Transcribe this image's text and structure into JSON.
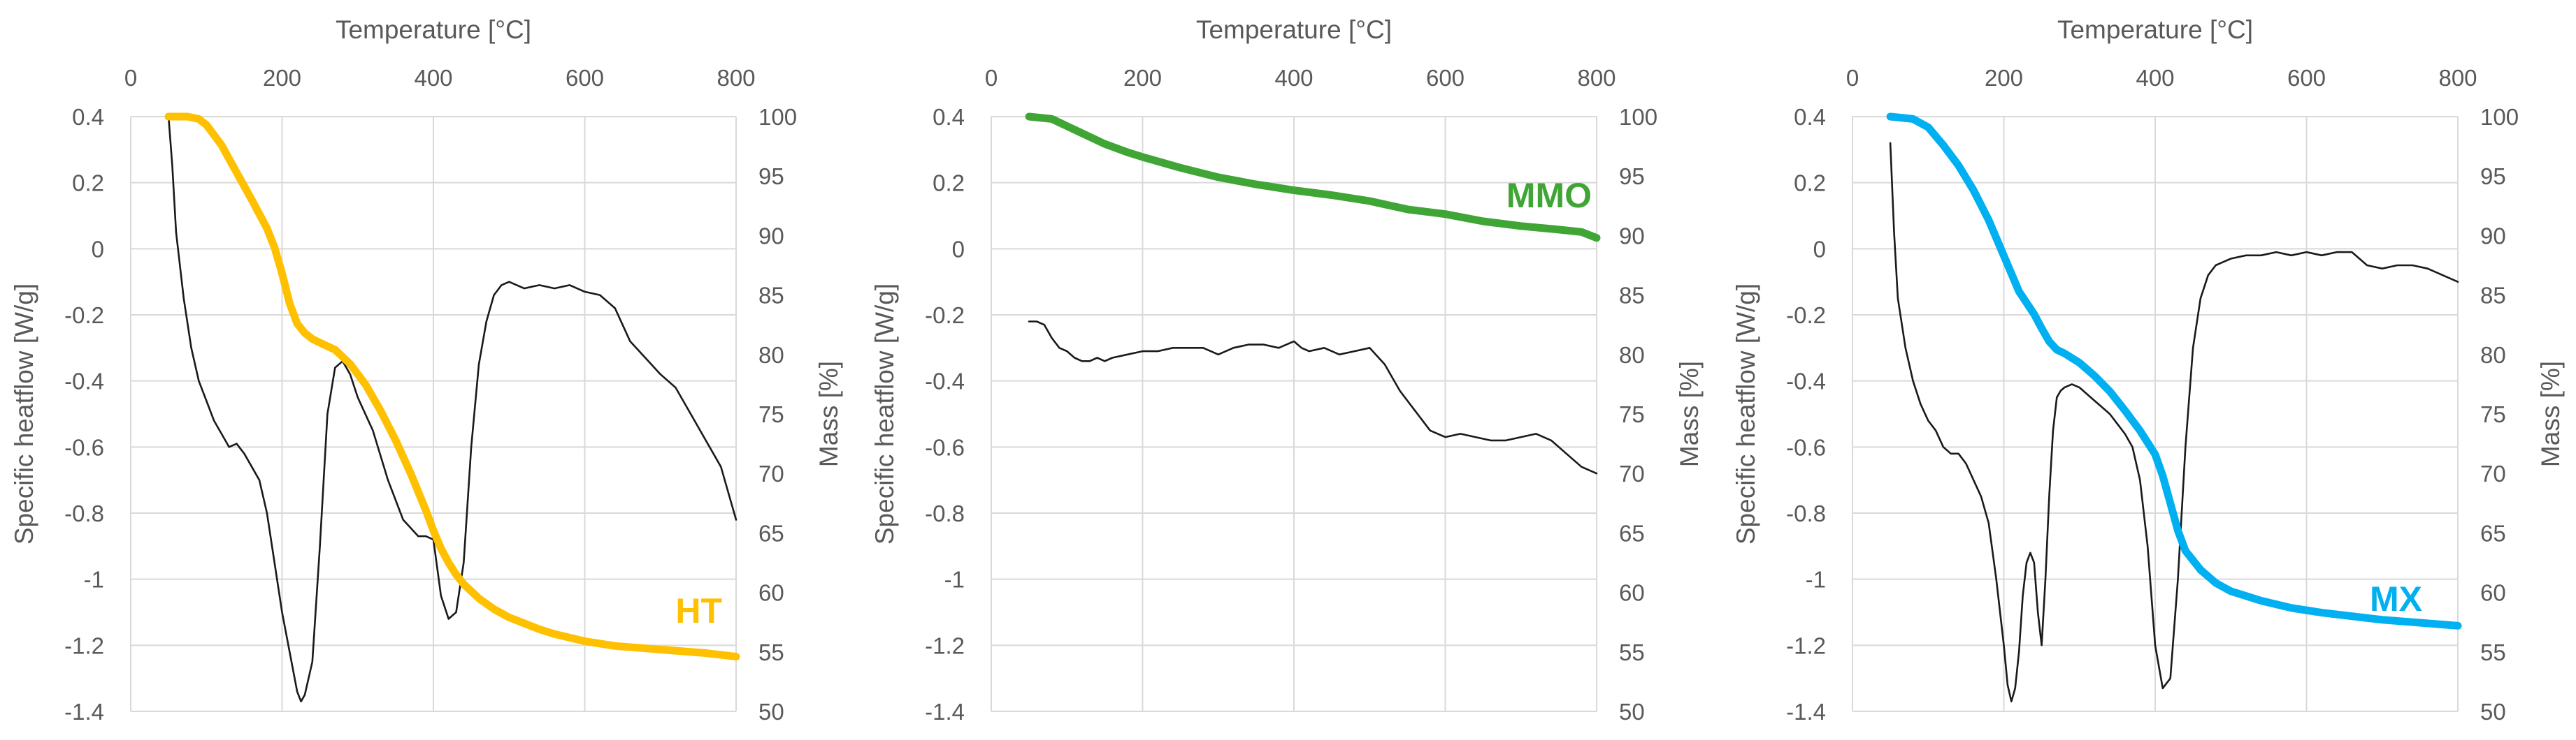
{
  "chart_data": [
    {
      "type": "line",
      "panel": "HT",
      "xlabel": "Temperature [°C]",
      "ylabel": "Specific heatflow [W/g]",
      "y2label": "Mass [%]",
      "xlim": [
        0,
        800
      ],
      "ylim": [
        -1.4,
        0.4
      ],
      "y2lim": [
        50,
        100
      ],
      "x_ticks": [
        "0",
        "200",
        "400",
        "600",
        "800"
      ],
      "y_ticks": [
        "0.4",
        "0.2",
        "0",
        "-0.2",
        "-0.4",
        "-0.6",
        "-0.8",
        "-1",
        "-1.2",
        "-1.4"
      ],
      "y2_ticks": [
        "100",
        "95",
        "90",
        "85",
        "80",
        "75",
        "70",
        "65",
        "60",
        "55",
        "50"
      ],
      "series_label": "HT",
      "series": [
        {
          "name": "Specific heatflow",
          "axis": "left",
          "color": "#1a1a1a",
          "x": [
            50,
            55,
            60,
            70,
            80,
            90,
            100,
            110,
            120,
            130,
            140,
            150,
            160,
            170,
            180,
            190,
            200,
            210,
            220,
            225,
            230,
            240,
            250,
            260,
            270,
            280,
            290,
            300,
            320,
            340,
            360,
            380,
            390,
            400,
            410,
            420,
            430,
            440,
            450,
            460,
            470,
            480,
            490,
            500,
            520,
            540,
            560,
            580,
            600,
            620,
            640,
            660,
            680,
            700,
            720,
            740,
            760,
            780,
            800
          ],
          "values": [
            0.4,
            0.25,
            0.05,
            -0.15,
            -0.3,
            -0.4,
            -0.46,
            -0.52,
            -0.56,
            -0.6,
            -0.59,
            -0.62,
            -0.66,
            -0.7,
            -0.8,
            -0.95,
            -1.1,
            -1.22,
            -1.34,
            -1.37,
            -1.35,
            -1.25,
            -0.9,
            -0.5,
            -0.36,
            -0.34,
            -0.38,
            -0.45,
            -0.55,
            -0.7,
            -0.82,
            -0.87,
            -0.87,
            -0.88,
            -1.05,
            -1.12,
            -1.1,
            -0.95,
            -0.6,
            -0.35,
            -0.22,
            -0.14,
            -0.11,
            -0.1,
            -0.12,
            -0.11,
            -0.12,
            -0.11,
            -0.13,
            -0.14,
            -0.18,
            -0.28,
            -0.33,
            -0.38,
            -0.42,
            -0.5,
            -0.58,
            -0.66,
            -0.82
          ]
        },
        {
          "name": "Mass",
          "axis": "right",
          "color": "#ffc000",
          "x": [
            50,
            75,
            90,
            100,
            120,
            140,
            160,
            180,
            190,
            200,
            210,
            220,
            230,
            240,
            250,
            270,
            290,
            310,
            330,
            350,
            370,
            390,
            400,
            410,
            420,
            430,
            440,
            450,
            460,
            480,
            500,
            520,
            540,
            560,
            600,
            640,
            680,
            720,
            760,
            800
          ],
          "values": [
            100,
            100,
            99.8,
            99.3,
            97.6,
            95.3,
            93,
            90.6,
            89,
            86.8,
            84.3,
            82.6,
            81.8,
            81.3,
            81,
            80.4,
            79.2,
            77.5,
            75.3,
            72.8,
            70,
            66.9,
            65.2,
            63.7,
            62.5,
            61.5,
            60.7,
            60.1,
            59.5,
            58.6,
            57.9,
            57.4,
            56.9,
            56.5,
            55.9,
            55.5,
            55.3,
            55.1,
            54.9,
            54.6
          ]
        }
      ]
    },
    {
      "type": "line",
      "panel": "MMO",
      "xlabel": "Temperature [°C]",
      "ylabel": "Specific heatflow [W/g]",
      "y2label": "Mass [%]",
      "xlim": [
        0,
        800
      ],
      "ylim": [
        -1.4,
        0.4
      ],
      "y2lim": [
        50,
        100
      ],
      "x_ticks": [
        "0",
        "200",
        "400",
        "600",
        "800"
      ],
      "y_ticks": [
        "0.4",
        "0.2",
        "0",
        "-0.2",
        "-0.4",
        "-0.6",
        "-0.8",
        "-1",
        "-1.2",
        "-1.4"
      ],
      "y2_ticks": [
        "100",
        "95",
        "90",
        "85",
        "80",
        "75",
        "70",
        "65",
        "60",
        "55",
        "50"
      ],
      "series_label": "MMO",
      "series": [
        {
          "name": "Specific heatflow",
          "axis": "left",
          "color": "#1a1a1a",
          "x": [
            50,
            60,
            70,
            80,
            90,
            100,
            110,
            120,
            130,
            140,
            150,
            160,
            180,
            200,
            220,
            240,
            260,
            280,
            300,
            320,
            340,
            360,
            380,
            390,
            400,
            410,
            420,
            440,
            460,
            480,
            500,
            520,
            540,
            560,
            580,
            600,
            620,
            640,
            660,
            680,
            700,
            720,
            740,
            760,
            780,
            800
          ],
          "values": [
            -0.22,
            -0.22,
            -0.23,
            -0.27,
            -0.3,
            -0.31,
            -0.33,
            -0.34,
            -0.34,
            -0.33,
            -0.34,
            -0.33,
            -0.32,
            -0.31,
            -0.31,
            -0.3,
            -0.3,
            -0.3,
            -0.32,
            -0.3,
            -0.29,
            -0.29,
            -0.3,
            -0.29,
            -0.28,
            -0.3,
            -0.31,
            -0.3,
            -0.32,
            -0.31,
            -0.3,
            -0.35,
            -0.43,
            -0.49,
            -0.55,
            -0.57,
            -0.56,
            -0.57,
            -0.58,
            -0.58,
            -0.57,
            -0.56,
            -0.58,
            -0.62,
            -0.66,
            -0.68
          ]
        },
        {
          "name": "Mass",
          "axis": "right",
          "color": "#3fa535",
          "x": [
            50,
            80,
            100,
            120,
            150,
            180,
            200,
            250,
            300,
            350,
            400,
            450,
            500,
            550,
            600,
            650,
            700,
            750,
            780,
            800
          ],
          "values": [
            100,
            99.8,
            99.2,
            98.6,
            97.7,
            97,
            96.6,
            95.7,
            94.9,
            94.3,
            93.8,
            93.4,
            92.9,
            92.2,
            91.8,
            91.2,
            90.8,
            90.5,
            90.3,
            89.8
          ]
        }
      ]
    },
    {
      "type": "line",
      "panel": "MX",
      "xlabel": "Temperature [°C]",
      "ylabel": "Specific heatflow [W/g]",
      "y2label": "Mass [%]",
      "xlim": [
        0,
        800
      ],
      "ylim": [
        -1.4,
        0.4
      ],
      "y2lim": [
        50,
        100
      ],
      "x_ticks": [
        "0",
        "200",
        "400",
        "600",
        "800"
      ],
      "y_ticks": [
        "0.4",
        "0.2",
        "0",
        "-0.2",
        "-0.4",
        "-0.6",
        "-0.8",
        "-1",
        "-1.2",
        "-1.4"
      ],
      "y2_ticks": [
        "100",
        "95",
        "90",
        "85",
        "80",
        "75",
        "70",
        "65",
        "60",
        "55",
        "50"
      ],
      "series_label": "MX",
      "series": [
        {
          "name": "Specific heatflow",
          "axis": "left",
          "color": "#1a1a1a",
          "x": [
            50,
            55,
            60,
            70,
            80,
            90,
            100,
            110,
            120,
            130,
            140,
            150,
            160,
            170,
            180,
            190,
            200,
            205,
            210,
            215,
            220,
            225,
            230,
            235,
            240,
            245,
            250,
            255,
            260,
            265,
            270,
            275,
            280,
            290,
            300,
            310,
            320,
            330,
            340,
            350,
            360,
            370,
            380,
            390,
            400,
            410,
            420,
            430,
            440,
            450,
            460,
            470,
            480,
            500,
            520,
            540,
            560,
            580,
            600,
            620,
            640,
            660,
            680,
            700,
            720,
            740,
            760,
            780,
            800
          ],
          "values": [
            0.32,
            0.05,
            -0.15,
            -0.3,
            -0.4,
            -0.47,
            -0.52,
            -0.55,
            -0.6,
            -0.62,
            -0.62,
            -0.65,
            -0.7,
            -0.75,
            -0.83,
            -1.0,
            -1.2,
            -1.32,
            -1.37,
            -1.33,
            -1.22,
            -1.05,
            -0.95,
            -0.92,
            -0.95,
            -1.1,
            -1.2,
            -1.0,
            -0.75,
            -0.55,
            -0.45,
            -0.43,
            -0.42,
            -0.41,
            -0.42,
            -0.44,
            -0.46,
            -0.48,
            -0.5,
            -0.53,
            -0.56,
            -0.6,
            -0.7,
            -0.9,
            -1.2,
            -1.33,
            -1.3,
            -1.0,
            -0.6,
            -0.3,
            -0.15,
            -0.08,
            -0.05,
            -0.03,
            -0.02,
            -0.02,
            -0.01,
            -0.02,
            -0.01,
            -0.02,
            -0.01,
            -0.01,
            -0.05,
            -0.06,
            -0.05,
            -0.05,
            -0.06,
            -0.08,
            -0.1
          ]
        },
        {
          "name": "Mass",
          "axis": "right",
          "color": "#00b0f0",
          "x": [
            50,
            80,
            100,
            120,
            140,
            160,
            180,
            200,
            220,
            240,
            250,
            260,
            270,
            280,
            300,
            320,
            340,
            360,
            380,
            400,
            410,
            420,
            430,
            440,
            460,
            480,
            500,
            540,
            580,
            620,
            660,
            700,
            740,
            780,
            800
          ],
          "values": [
            100,
            99.8,
            99.1,
            97.6,
            95.9,
            93.8,
            91.3,
            88.3,
            85.3,
            83.4,
            82.2,
            81.1,
            80.4,
            80.1,
            79.3,
            78.2,
            76.9,
            75.3,
            73.6,
            71.6,
            69.8,
            67.5,
            65.2,
            63.5,
            61.9,
            60.8,
            60.1,
            59.3,
            58.7,
            58.3,
            58,
            57.7,
            57.5,
            57.3,
            57.2
          ]
        }
      ]
    }
  ]
}
